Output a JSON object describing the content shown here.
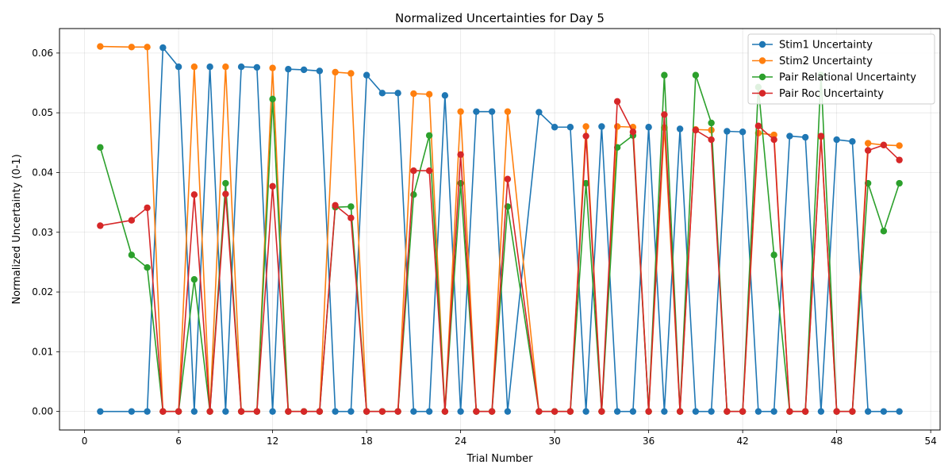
{
  "chart_data": {
    "type": "line",
    "title": "Normalized Uncertainties for Day 5",
    "xlabel": "Trial Number",
    "ylabel": "Normalized Uncertainty (0-1)",
    "xlim": [
      -1.6,
      54.6
    ],
    "ylim": [
      -0.0031,
      0.0641
    ],
    "xticks": [
      0,
      6,
      12,
      18,
      24,
      30,
      36,
      42,
      48,
      54
    ],
    "yticks": [
      0.0,
      0.01,
      0.02,
      0.03,
      0.04,
      0.05,
      0.06
    ],
    "grid": true,
    "legend_position": "top-right",
    "x": [
      1,
      3,
      4,
      5,
      6,
      7,
      8,
      9,
      10,
      11,
      12,
      13,
      14,
      15,
      16,
      17,
      18,
      19,
      20,
      21,
      22,
      23,
      24,
      25,
      26,
      27,
      29,
      30,
      31,
      32,
      33,
      34,
      35,
      36,
      37,
      38,
      39,
      40,
      41,
      42,
      43,
      44,
      45,
      46,
      47,
      48,
      49,
      50,
      51,
      52
    ],
    "series": [
      {
        "name": "Stim1 Uncertainty",
        "color": "#1f77b4",
        "values": [
          0,
          0,
          0,
          0.0609,
          0.0577,
          0,
          0.0577,
          0,
          0.0577,
          0.0576,
          0,
          0.0573,
          0.0572,
          0.057,
          0,
          0,
          0.0563,
          0.0533,
          0.0533,
          0,
          0,
          0.0529,
          0,
          0.0502,
          0.0502,
          0,
          0.0501,
          0.0476,
          0.0476,
          0,
          0.0477,
          0,
          0,
          0.0476,
          0,
          0.0473,
          0,
          0,
          0.0469,
          0.0468,
          0,
          0,
          0.0461,
          0.0459,
          0,
          0.0455,
          0.0452,
          0,
          0,
          0
        ]
      },
      {
        "name": "Stim2 Uncertainty",
        "color": "#ff7f0e",
        "values": [
          0.0611,
          0.061,
          0.061,
          0,
          0,
          0.0577,
          0,
          0.0577,
          0,
          0,
          0.0575,
          0,
          0,
          0,
          0.0568,
          0.0566,
          0,
          0,
          0,
          0.0532,
          0.0531,
          0,
          0.0502,
          0,
          0,
          0.0502,
          0,
          0,
          0,
          0.0477,
          0,
          0.0477,
          0.0476,
          0,
          0.0475,
          0,
          0.0472,
          0.0471,
          0,
          0,
          0.0466,
          0.0463,
          0,
          0,
          0.046,
          0,
          0,
          0.0449,
          0.0446,
          0.0445
        ]
      },
      {
        "name": "Pair Relational Uncertainty",
        "color": "#2ca02c",
        "values": [
          0.0442,
          0.0262,
          0.0241,
          0,
          0,
          0.0221,
          0,
          0.0382,
          0,
          0,
          0.0523,
          0,
          0,
          0,
          0.0342,
          0.0343,
          0,
          0,
          0,
          0.0363,
          0.0462,
          0,
          0.0382,
          0,
          0,
          0.0343,
          0,
          0,
          0,
          0.0382,
          0,
          0.0442,
          0.0462,
          0,
          0.0563,
          0,
          0.0563,
          0.0483,
          0,
          0,
          0.0543,
          0.0262,
          0,
          0,
          0.0563,
          0,
          0,
          0.0382,
          0.0302,
          0.0382
        ]
      },
      {
        "name": "Pair Roc Uncertainty",
        "color": "#d62728",
        "values": [
          0.0311,
          0.032,
          0.0341,
          0,
          0,
          0.0363,
          0,
          0.0364,
          0,
          0,
          0.0377,
          0,
          0,
          0,
          0.0345,
          0.0324,
          0,
          0,
          0,
          0.0403,
          0.0403,
          0,
          0.043,
          0,
          0,
          0.0389,
          0,
          0,
          0,
          0.0461,
          0,
          0.0519,
          0.0468,
          0,
          0.0497,
          0,
          0.0471,
          0.0455,
          0,
          0,
          0.0478,
          0.0455,
          0,
          0,
          0.0461,
          0,
          0,
          0.0437,
          0.0446,
          0.0421
        ]
      }
    ]
  }
}
